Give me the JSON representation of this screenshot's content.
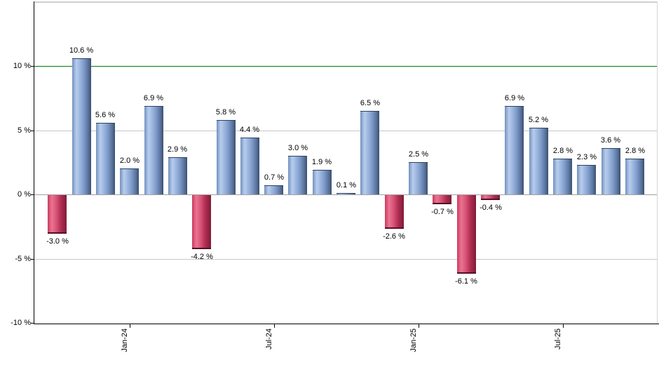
{
  "chart_data": {
    "type": "bar",
    "title": "",
    "xlabel": "",
    "ylabel": "",
    "ylim": [
      -10,
      15
    ],
    "grid": "horizontal",
    "legend": "none",
    "values": [
      -3.0,
      10.6,
      5.6,
      2.0,
      6.9,
      2.9,
      -4.2,
      5.8,
      4.4,
      0.7,
      3.0,
      1.9,
      0.1,
      6.5,
      -2.6,
      2.5,
      -0.7,
      -6.1,
      -0.4,
      6.9,
      5.2,
      2.8,
      2.3,
      3.6,
      2.8
    ],
    "bar_labels": [
      "-3.0 %",
      "10.6 %",
      "5.6 %",
      "2.0 %",
      "6.9 %",
      "2.9 %",
      "-4.2 %",
      "5.8 %",
      "4.4 %",
      "0.7 %",
      "3.0 %",
      "1.9 %",
      "0.1 %",
      "6.5 %",
      "-2.6 %",
      "2.5 %",
      "-0.7 %",
      "-6.1 %",
      "-0.4 %",
      "6.9 %",
      "5.2 %",
      "2.8 %",
      "2.3 %",
      "3.6 %",
      "2.8 %"
    ],
    "x_tick_labels": [
      {
        "label": "Jan-24",
        "bar_index": 3
      },
      {
        "label": "Jul-24",
        "bar_index": 9
      },
      {
        "label": "Jan-25",
        "bar_index": 15
      },
      {
        "label": "Jul-25",
        "bar_index": 21
      }
    ],
    "y_ticks": [
      {
        "label": "10 %",
        "value": 10
      },
      {
        "label": "5 %",
        "value": 5
      },
      {
        "label": "0 %",
        "value": 0
      },
      {
        "label": "-5 %",
        "value": -5
      },
      {
        "label": "-10 %",
        "value": -10
      }
    ],
    "threshold_line": {
      "value": 10,
      "color": "#007c00"
    },
    "colors": {
      "positive_bar": "#7fa1d0",
      "positive_bar_dark": "#3c5070",
      "negative_bar": "#cc3a60",
      "negative_bar_dark": "#7e1b38",
      "gridline": "#c8c8c8",
      "zero_line": "#a0a0a0",
      "axis": "#000000",
      "threshold": "#007c00"
    }
  }
}
